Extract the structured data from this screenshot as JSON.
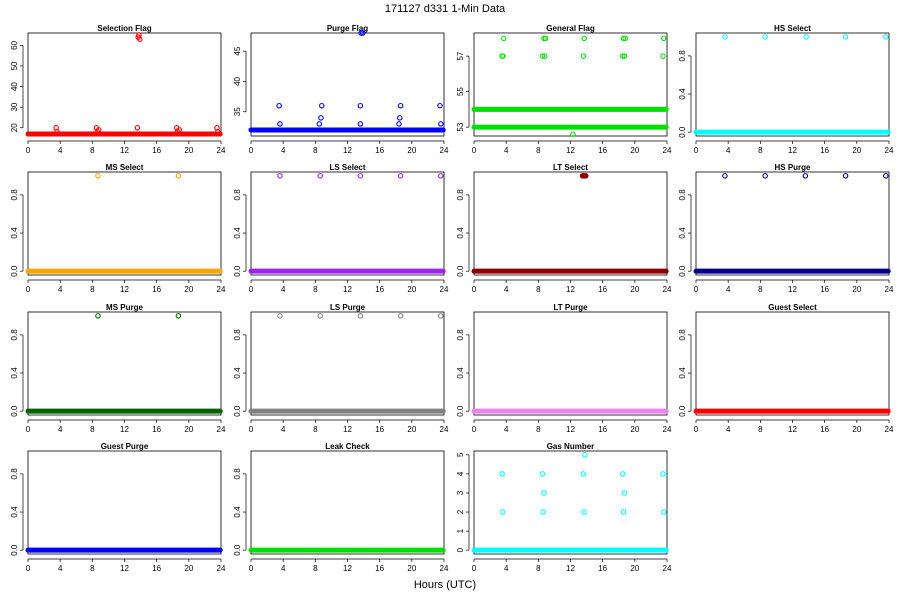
{
  "figure": {
    "title": "171127   d331   1-Min Data",
    "xlabel": "Hours (UTC)"
  },
  "chart_data": [
    {
      "type": "scatter",
      "title": "Selection Flag",
      "color": "#ff0000",
      "xlim": [
        0,
        24
      ],
      "xticks": [
        0,
        4,
        8,
        12,
        16,
        20,
        24
      ],
      "ylim": [
        16,
        66
      ],
      "yticks": [
        20,
        30,
        40,
        50,
        60
      ],
      "bands": [
        {
          "y": 17,
          "x_from": 0,
          "x_to": 23.9
        }
      ],
      "points": [
        {
          "x": 3.5,
          "y": 20
        },
        {
          "x": 3.6,
          "y": 18
        },
        {
          "x": 8.5,
          "y": 20
        },
        {
          "x": 8.6,
          "y": 18
        },
        {
          "x": 8.8,
          "y": 19
        },
        {
          "x": 13.6,
          "y": 20
        },
        {
          "x": 13.7,
          "y": 64
        },
        {
          "x": 13.8,
          "y": 65
        },
        {
          "x": 13.9,
          "y": 63
        },
        {
          "x": 18.5,
          "y": 20
        },
        {
          "x": 18.6,
          "y": 18
        },
        {
          "x": 18.8,
          "y": 19
        },
        {
          "x": 23.5,
          "y": 20
        },
        {
          "x": 23.6,
          "y": 18
        }
      ]
    },
    {
      "type": "scatter",
      "title": "Purge Flag",
      "color": "#0000ff",
      "xlim": [
        0,
        24
      ],
      "xticks": [
        0,
        4,
        8,
        12,
        16,
        20,
        24
      ],
      "ylim": [
        31,
        48
      ],
      "yticks": [
        35,
        40,
        45
      ],
      "bands": [
        {
          "y": 32,
          "x_from": 0,
          "x_to": 23.9
        }
      ],
      "points": [
        {
          "x": 3.5,
          "y": 36
        },
        {
          "x": 3.6,
          "y": 33
        },
        {
          "x": 8.5,
          "y": 33
        },
        {
          "x": 8.7,
          "y": 34
        },
        {
          "x": 8.8,
          "y": 36
        },
        {
          "x": 13.6,
          "y": 33
        },
        {
          "x": 13.6,
          "y": 36
        },
        {
          "x": 13.7,
          "y": 48
        },
        {
          "x": 13.9,
          "y": 48
        },
        {
          "x": 18.4,
          "y": 33
        },
        {
          "x": 18.5,
          "y": 34
        },
        {
          "x": 18.6,
          "y": 36
        },
        {
          "x": 23.5,
          "y": 36
        },
        {
          "x": 23.6,
          "y": 33
        }
      ]
    },
    {
      "type": "scatter",
      "title": "General Flag",
      "color": "#00e000",
      "xlim": [
        0,
        24
      ],
      "xticks": [
        0,
        4,
        8,
        12,
        16,
        20,
        24
      ],
      "ylim": [
        52.5,
        58.3
      ],
      "yticks": [
        53,
        55,
        57
      ],
      "bands": [
        {
          "y": 53,
          "x_from": 0,
          "x_to": 23.9
        },
        {
          "x_from": 0,
          "x_to": 23.9,
          "y": 54
        }
      ],
      "points": [
        {
          "x": 3.6,
          "y": 57
        },
        {
          "x": 3.7,
          "y": 58
        },
        {
          "x": 3.5,
          "y": 57
        },
        {
          "x": 8.5,
          "y": 57
        },
        {
          "x": 8.7,
          "y": 58
        },
        {
          "x": 8.8,
          "y": 57
        },
        {
          "x": 8.9,
          "y": 58
        },
        {
          "x": 12.3,
          "y": 52.6
        },
        {
          "x": 13.6,
          "y": 57
        },
        {
          "x": 13.7,
          "y": 58
        },
        {
          "x": 18.5,
          "y": 57
        },
        {
          "x": 18.6,
          "y": 58
        },
        {
          "x": 18.7,
          "y": 57
        },
        {
          "x": 18.8,
          "y": 58
        },
        {
          "x": 23.5,
          "y": 57
        },
        {
          "x": 23.6,
          "y": 58
        }
      ]
    },
    {
      "type": "scatter",
      "title": "HS Select",
      "color": "#00ffff",
      "xlim": [
        0,
        24
      ],
      "xticks": [
        0,
        4,
        8,
        12,
        16,
        20,
        24
      ],
      "ylim": [
        -0.04,
        1.04
      ],
      "yticks": [
        0.0,
        0.4,
        0.8
      ],
      "bands": [
        {
          "y": 0,
          "x_from": 0,
          "x_to": 23.9
        }
      ],
      "points": [
        {
          "x": 3.6,
          "y": 1
        },
        {
          "x": 8.6,
          "y": 1
        },
        {
          "x": 13.7,
          "y": 1
        },
        {
          "x": 18.6,
          "y": 1
        },
        {
          "x": 23.6,
          "y": 1
        }
      ]
    },
    {
      "type": "scatter",
      "title": "MS Select",
      "color": "#ffa500",
      "xlim": [
        0,
        24
      ],
      "xticks": [
        0,
        4,
        8,
        12,
        16,
        20,
        24
      ],
      "ylim": [
        -0.04,
        1.04
      ],
      "yticks": [
        0.0,
        0.4,
        0.8
      ],
      "bands": [
        {
          "y": 0,
          "x_from": 0,
          "x_to": 23.9
        }
      ],
      "points": [
        {
          "x": 8.7,
          "y": 1
        },
        {
          "x": 18.7,
          "y": 1
        }
      ]
    },
    {
      "type": "scatter",
      "title": "LS Select",
      "color": "#a020f0",
      "xlim": [
        0,
        24
      ],
      "xticks": [
        0,
        4,
        8,
        12,
        16,
        20,
        24
      ],
      "ylim": [
        -0.04,
        1.04
      ],
      "yticks": [
        0.0,
        0.4,
        0.8
      ],
      "bands": [
        {
          "y": 0,
          "x_from": 0,
          "x_to": 23.9
        }
      ],
      "points": [
        {
          "x": 3.6,
          "y": 1
        },
        {
          "x": 8.6,
          "y": 1
        },
        {
          "x": 13.6,
          "y": 1
        },
        {
          "x": 18.6,
          "y": 1
        },
        {
          "x": 23.6,
          "y": 1
        }
      ]
    },
    {
      "type": "scatter",
      "title": "LT Select",
      "color": "#8b0000",
      "xlim": [
        0,
        24
      ],
      "xticks": [
        0,
        4,
        8,
        12,
        16,
        20,
        24
      ],
      "ylim": [
        -0.04,
        1.04
      ],
      "yticks": [
        0.0,
        0.4,
        0.8
      ],
      "bands": [
        {
          "y": 0,
          "x_from": 0,
          "x_to": 23.9
        }
      ],
      "points": [
        {
          "x": 13.5,
          "y": 1
        },
        {
          "x": 13.6,
          "y": 1
        },
        {
          "x": 13.7,
          "y": 1
        },
        {
          "x": 13.8,
          "y": 1
        },
        {
          "x": 13.9,
          "y": 1
        }
      ]
    },
    {
      "type": "scatter",
      "title": "HS Purge",
      "color": "#00008b",
      "xlim": [
        0,
        24
      ],
      "xticks": [
        0,
        4,
        8,
        12,
        16,
        20,
        24
      ],
      "ylim": [
        -0.04,
        1.04
      ],
      "yticks": [
        0.0,
        0.4,
        0.8
      ],
      "bands": [
        {
          "y": 0,
          "x_from": 0,
          "x_to": 23.9
        }
      ],
      "points": [
        {
          "x": 3.6,
          "y": 1
        },
        {
          "x": 8.6,
          "y": 1
        },
        {
          "x": 13.6,
          "y": 1
        },
        {
          "x": 18.6,
          "y": 1
        },
        {
          "x": 23.6,
          "y": 1
        }
      ]
    },
    {
      "type": "scatter",
      "title": "MS Purge",
      "color": "#006400",
      "xlim": [
        0,
        24
      ],
      "xticks": [
        0,
        4,
        8,
        12,
        16,
        20,
        24
      ],
      "ylim": [
        -0.04,
        1.04
      ],
      "yticks": [
        0.0,
        0.4,
        0.8
      ],
      "bands": [
        {
          "y": 0,
          "x_from": 0,
          "x_to": 23.9
        }
      ],
      "points": [
        {
          "x": 8.7,
          "y": 1
        },
        {
          "x": 18.7,
          "y": 1
        }
      ]
    },
    {
      "type": "scatter",
      "title": "LS Purge",
      "color": "#808080",
      "xlim": [
        0,
        24
      ],
      "xticks": [
        0,
        4,
        8,
        12,
        16,
        20,
        24
      ],
      "ylim": [
        -0.04,
        1.04
      ],
      "yticks": [
        0.0,
        0.4,
        0.8
      ],
      "bands": [
        {
          "y": 0,
          "x_from": 0,
          "x_to": 23.9
        }
      ],
      "points": [
        {
          "x": 3.6,
          "y": 1
        },
        {
          "x": 8.6,
          "y": 1
        },
        {
          "x": 13.6,
          "y": 1
        },
        {
          "x": 18.6,
          "y": 1
        },
        {
          "x": 23.6,
          "y": 1
        }
      ]
    },
    {
      "type": "scatter",
      "title": "LT Purge",
      "color": "#ee82ee",
      "xlim": [
        0,
        24
      ],
      "xticks": [
        0,
        4,
        8,
        12,
        16,
        20,
        24
      ],
      "ylim": [
        -0.04,
        1.04
      ],
      "yticks": [
        0.0,
        0.4,
        0.8
      ],
      "bands": [
        {
          "y": 0,
          "x_from": 0,
          "x_to": 23.9
        }
      ],
      "points": []
    },
    {
      "type": "scatter",
      "title": "Guest Select",
      "color": "#ff0000",
      "xlim": [
        0,
        24
      ],
      "xticks": [
        0,
        4,
        8,
        12,
        16,
        20,
        24
      ],
      "ylim": [
        -0.04,
        1.04
      ],
      "yticks": [
        0.0,
        0.4,
        0.8
      ],
      "bands": [
        {
          "y": 0,
          "x_from": 0,
          "x_to": 23.9
        }
      ],
      "points": []
    },
    {
      "type": "scatter",
      "title": "Guest Purge",
      "color": "#0000ff",
      "xlim": [
        0,
        24
      ],
      "xticks": [
        0,
        4,
        8,
        12,
        16,
        20,
        24
      ],
      "ylim": [
        -0.04,
        1.04
      ],
      "yticks": [
        0.0,
        0.4,
        0.8
      ],
      "bands": [
        {
          "y": 0,
          "x_from": 0,
          "x_to": 23.9
        }
      ],
      "points": []
    },
    {
      "type": "scatter",
      "title": "Leak Check",
      "color": "#00e000",
      "xlim": [
        0,
        24
      ],
      "xticks": [
        0,
        4,
        8,
        12,
        16,
        20,
        24
      ],
      "ylim": [
        -0.04,
        1.04
      ],
      "yticks": [
        0.0,
        0.4,
        0.8
      ],
      "bands": [
        {
          "y": 0,
          "x_from": 0,
          "x_to": 23.9
        }
      ],
      "points": []
    },
    {
      "type": "scatter",
      "title": "Gas Number",
      "color": "#00ffff",
      "xlim": [
        0,
        24
      ],
      "xticks": [
        0,
        4,
        8,
        12,
        16,
        20,
        24
      ],
      "ylim": [
        -0.2,
        5.2
      ],
      "yticks": [
        0,
        1,
        2,
        3,
        4,
        5
      ],
      "bands": [
        {
          "y": 0,
          "x_from": 0,
          "x_to": 23.9
        }
      ],
      "points": [
        {
          "x": 3.5,
          "y": 4
        },
        {
          "x": 3.6,
          "y": 2
        },
        {
          "x": 8.5,
          "y": 4
        },
        {
          "x": 8.6,
          "y": 2
        },
        {
          "x": 8.7,
          "y": 3
        },
        {
          "x": 13.6,
          "y": 4
        },
        {
          "x": 13.7,
          "y": 2
        },
        {
          "x": 13.8,
          "y": 5
        },
        {
          "x": 18.5,
          "y": 4
        },
        {
          "x": 18.6,
          "y": 2
        },
        {
          "x": 18.7,
          "y": 3
        },
        {
          "x": 23.5,
          "y": 4
        },
        {
          "x": 23.6,
          "y": 2
        }
      ]
    }
  ]
}
